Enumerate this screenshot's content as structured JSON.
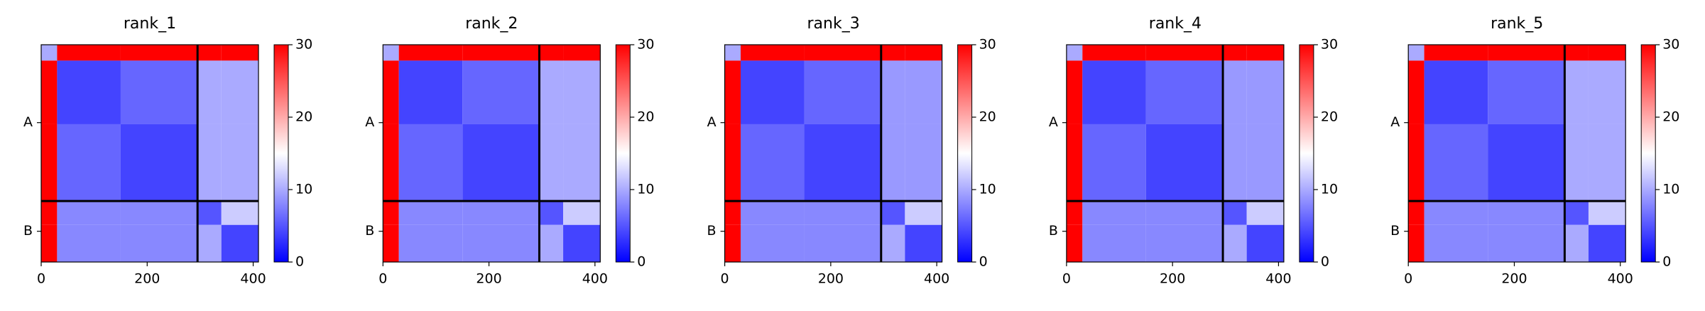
{
  "chart_data": [
    {
      "type": "heatmap",
      "title": "rank_1",
      "bins": [
        0,
        30,
        150,
        295,
        340,
        410
      ],
      "matrix": [
        [
          10,
          30,
          30,
          30,
          30
        ],
        [
          30,
          4,
          6,
          10,
          10
        ],
        [
          30,
          6,
          4,
          10,
          10
        ],
        [
          30,
          8,
          8,
          5,
          12
        ],
        [
          30,
          8,
          8,
          10,
          4
        ]
      ],
      "xlim": [
        0,
        410
      ],
      "ylim": [
        410,
        0
      ],
      "xticks": [
        0,
        200,
        400
      ],
      "yticks": [
        {
          "value": 147,
          "label": "A"
        },
        {
          "value": 352,
          "label": "B"
        }
      ],
      "chain_breaks": [
        295
      ],
      "clim": [
        0,
        30
      ],
      "cticks": [
        0,
        10,
        20,
        30
      ],
      "colormap": "bwr"
    },
    {
      "type": "heatmap",
      "title": "rank_2",
      "bins": [
        0,
        30,
        150,
        295,
        340,
        410
      ],
      "matrix": [
        [
          10,
          30,
          30,
          30,
          30
        ],
        [
          30,
          4,
          6,
          10,
          10
        ],
        [
          30,
          6,
          4,
          10,
          10
        ],
        [
          30,
          8,
          8,
          5,
          12
        ],
        [
          30,
          8,
          8,
          10,
          4
        ]
      ],
      "xlim": [
        0,
        410
      ],
      "ylim": [
        410,
        0
      ],
      "xticks": [
        0,
        200,
        400
      ],
      "yticks": [
        {
          "value": 147,
          "label": "A"
        },
        {
          "value": 352,
          "label": "B"
        }
      ],
      "chain_breaks": [
        295
      ],
      "clim": [
        0,
        30
      ],
      "cticks": [
        0,
        10,
        20,
        30
      ],
      "colormap": "bwr"
    },
    {
      "type": "heatmap",
      "title": "rank_3",
      "bins": [
        0,
        30,
        150,
        295,
        340,
        410
      ],
      "matrix": [
        [
          10,
          30,
          30,
          30,
          30
        ],
        [
          30,
          4,
          6,
          9,
          9
        ],
        [
          30,
          6,
          4,
          9,
          9
        ],
        [
          30,
          8,
          8,
          5,
          12
        ],
        [
          30,
          8,
          8,
          10,
          4
        ]
      ],
      "xlim": [
        0,
        410
      ],
      "ylim": [
        410,
        0
      ],
      "xticks": [
        0,
        200,
        400
      ],
      "yticks": [
        {
          "value": 147,
          "label": "A"
        },
        {
          "value": 352,
          "label": "B"
        }
      ],
      "chain_breaks": [
        295
      ],
      "clim": [
        0,
        30
      ],
      "cticks": [
        0,
        10,
        20,
        30
      ],
      "colormap": "bwr"
    },
    {
      "type": "heatmap",
      "title": "rank_4",
      "bins": [
        0,
        30,
        150,
        295,
        340,
        410
      ],
      "matrix": [
        [
          10,
          30,
          30,
          30,
          30
        ],
        [
          30,
          4,
          6,
          9,
          9
        ],
        [
          30,
          6,
          4,
          9,
          9
        ],
        [
          30,
          8,
          8,
          5,
          12
        ],
        [
          30,
          8,
          8,
          10,
          4
        ]
      ],
      "xlim": [
        0,
        410
      ],
      "ylim": [
        410,
        0
      ],
      "xticks": [
        0,
        200,
        400
      ],
      "yticks": [
        {
          "value": 147,
          "label": "A"
        },
        {
          "value": 352,
          "label": "B"
        }
      ],
      "chain_breaks": [
        295
      ],
      "clim": [
        0,
        30
      ],
      "cticks": [
        0,
        10,
        20,
        30
      ],
      "colormap": "bwr"
    },
    {
      "type": "heatmap",
      "title": "rank_5",
      "bins": [
        0,
        30,
        150,
        295,
        340,
        410
      ],
      "matrix": [
        [
          10,
          30,
          30,
          30,
          30
        ],
        [
          30,
          4,
          6,
          10,
          10
        ],
        [
          30,
          6,
          4,
          10,
          10
        ],
        [
          30,
          8,
          8,
          5,
          12
        ],
        [
          30,
          8,
          8,
          10,
          4
        ]
      ],
      "xlim": [
        0,
        410
      ],
      "ylim": [
        410,
        0
      ],
      "xticks": [
        0,
        200,
        400
      ],
      "yticks": [
        {
          "value": 147,
          "label": "A"
        },
        {
          "value": 352,
          "label": "B"
        }
      ],
      "chain_breaks": [
        295
      ],
      "clim": [
        0,
        30
      ],
      "cticks": [
        0,
        10,
        20,
        30
      ],
      "colormap": "bwr"
    }
  ]
}
